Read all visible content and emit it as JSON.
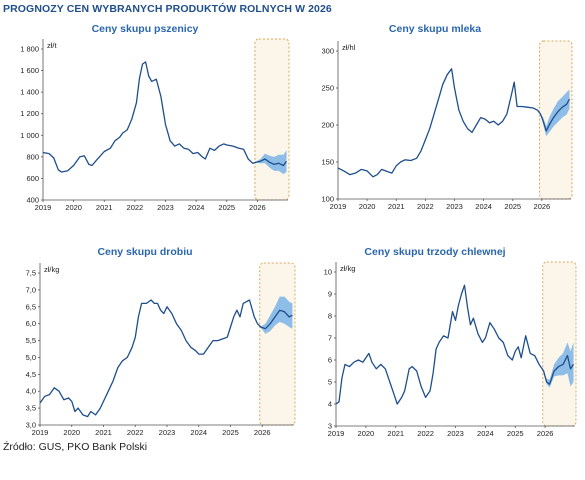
{
  "header": {
    "title": "PROGNOZY CEN WYBRANYCH PRODUKTÓW ROLNYCH W 2026"
  },
  "footer": {
    "source": "Źródło: GUS, PKO Bank Polski"
  },
  "colors": {
    "line": "#1f4e8c",
    "band": "#6aaae6",
    "forecast_box_fill": "#fbf5ea",
    "forecast_box_border": "#d9a85a",
    "axis": "#555555"
  },
  "chart_data": [
    {
      "type": "line",
      "title": "Ceny skupu pszenicy",
      "unit": "zł/t",
      "ylim": [
        400,
        1800
      ],
      "yticks": [
        400,
        600,
        800,
        1000,
        1200,
        1400,
        1600,
        1800
      ],
      "ytick_labels": [
        "400",
        "600",
        "800",
        "1 000",
        "1 200",
        "1 400",
        "1 600",
        "1 800"
      ],
      "xlim": [
        2019,
        2027
      ],
      "xticks": [
        2019,
        2020,
        2021,
        2022,
        2023,
        2024,
        2025,
        2026
      ],
      "forecast_start": 2025.92,
      "x": [
        2019.0,
        2019.2,
        2019.35,
        2019.5,
        2019.6,
        2019.8,
        2020.0,
        2020.2,
        2020.35,
        2020.5,
        2020.6,
        2020.75,
        2021.0,
        2021.2,
        2021.35,
        2021.5,
        2021.6,
        2021.75,
        2021.9,
        2022.05,
        2022.15,
        2022.25,
        2022.35,
        2022.45,
        2022.55,
        2022.7,
        2022.85,
        2023.0,
        2023.15,
        2023.3,
        2023.45,
        2023.6,
        2023.75,
        2023.9,
        2024.05,
        2024.2,
        2024.3,
        2024.45,
        2024.6,
        2024.75,
        2024.9,
        2025.0,
        2025.2,
        2025.4,
        2025.55,
        2025.7,
        2025.85,
        2025.95,
        2026.1,
        2026.25,
        2026.4,
        2026.55,
        2026.7,
        2026.85,
        2026.95
      ],
      "values": [
        840,
        830,
        790,
        680,
        660,
        670,
        720,
        800,
        810,
        730,
        720,
        770,
        850,
        880,
        950,
        980,
        1020,
        1050,
        1150,
        1300,
        1530,
        1660,
        1680,
        1550,
        1500,
        1520,
        1360,
        1100,
        950,
        900,
        920,
        880,
        870,
        830,
        840,
        800,
        780,
        880,
        860,
        900,
        920,
        910,
        900,
        880,
        870,
        780,
        740,
        750,
        760,
        780,
        750,
        730,
        740,
        720,
        760
      ],
      "band_x": [
        2025.95,
        2026.1,
        2026.25,
        2026.4,
        2026.55,
        2026.7,
        2026.85,
        2026.95
      ],
      "band_low": [
        745,
        740,
        740,
        700,
        670,
        670,
        640,
        660
      ],
      "band_high": [
        755,
        780,
        830,
        810,
        800,
        820,
        820,
        860
      ]
    },
    {
      "type": "line",
      "title": "Ceny skupu mleka",
      "unit": "zł/hl",
      "ylim": [
        100,
        300
      ],
      "yticks": [
        100,
        150,
        200,
        250,
        300
      ],
      "ytick_labels": [
        "100",
        "150",
        "200",
        "250",
        "300"
      ],
      "xlim": [
        2019,
        2027
      ],
      "xticks": [
        2019,
        2020,
        2021,
        2022,
        2023,
        2024,
        2025,
        2026
      ],
      "forecast_start": 2025.92,
      "x": [
        2019.0,
        2019.2,
        2019.4,
        2019.6,
        2019.8,
        2020.0,
        2020.2,
        2020.35,
        2020.5,
        2020.7,
        2020.85,
        2021.0,
        2021.15,
        2021.3,
        2021.5,
        2021.7,
        2021.85,
        2022.0,
        2022.15,
        2022.3,
        2022.45,
        2022.6,
        2022.75,
        2022.9,
        2023.0,
        2023.15,
        2023.3,
        2023.45,
        2023.6,
        2023.75,
        2023.9,
        2024.05,
        2024.2,
        2024.35,
        2024.5,
        2024.65,
        2024.8,
        2024.95,
        2025.05,
        2025.15,
        2025.3,
        2025.5,
        2025.7,
        2025.85,
        2025.95,
        2026.05,
        2026.15,
        2026.25,
        2026.4,
        2026.55,
        2026.7,
        2026.85,
        2026.95
      ],
      "values": [
        142,
        138,
        133,
        135,
        140,
        138,
        130,
        133,
        140,
        137,
        135,
        145,
        150,
        153,
        152,
        155,
        165,
        180,
        195,
        215,
        235,
        255,
        268,
        276,
        250,
        220,
        205,
        195,
        190,
        200,
        210,
        208,
        203,
        205,
        200,
        205,
        215,
        240,
        258,
        225,
        225,
        224,
        223,
        220,
        215,
        205,
        192,
        200,
        210,
        218,
        224,
        228,
        235
      ],
      "band_x": [
        2025.95,
        2026.05,
        2026.15,
        2026.25,
        2026.4,
        2026.55,
        2026.7,
        2026.85,
        2026.95
      ],
      "band_low": [
        214,
        200,
        185,
        190,
        198,
        204,
        210,
        214,
        222
      ],
      "band_high": [
        216,
        210,
        198,
        210,
        222,
        232,
        238,
        244,
        248
      ]
    },
    {
      "type": "line",
      "title": "Ceny skupu drobiu",
      "unit": "zł/kg",
      "ylim": [
        3.0,
        7.5
      ],
      "yticks": [
        3.0,
        3.5,
        4.0,
        4.5,
        5.0,
        5.5,
        6.0,
        6.5,
        7.0,
        7.5
      ],
      "ytick_labels": [
        "3,0",
        "3,5",
        "4,0",
        "4,5",
        "5,0",
        "5,5",
        "6,0",
        "6,5",
        "7,0",
        "7,5"
      ],
      "xlim": [
        2019,
        2027
      ],
      "xticks": [
        2019,
        2020,
        2021,
        2022,
        2023,
        2024,
        2025,
        2026
      ],
      "forecast_start": 2025.92,
      "x": [
        2019.0,
        2019.15,
        2019.3,
        2019.45,
        2019.6,
        2019.75,
        2019.9,
        2020.0,
        2020.1,
        2020.2,
        2020.35,
        2020.5,
        2020.6,
        2020.75,
        2020.9,
        2021.0,
        2021.15,
        2021.3,
        2021.45,
        2021.6,
        2021.75,
        2021.9,
        2022.0,
        2022.1,
        2022.2,
        2022.35,
        2022.5,
        2022.6,
        2022.7,
        2022.8,
        2022.9,
        2023.0,
        2023.15,
        2023.3,
        2023.45,
        2023.6,
        2023.75,
        2023.9,
        2024.0,
        2024.15,
        2024.3,
        2024.45,
        2024.6,
        2024.75,
        2024.9,
        2025.0,
        2025.1,
        2025.2,
        2025.3,
        2025.4,
        2025.5,
        2025.6,
        2025.75,
        2025.85,
        2025.95,
        2026.1,
        2026.25,
        2026.4,
        2026.55,
        2026.7,
        2026.85,
        2026.95
      ],
      "values": [
        3.65,
        3.85,
        3.9,
        4.1,
        4.0,
        3.75,
        3.8,
        3.7,
        3.4,
        3.5,
        3.3,
        3.25,
        3.4,
        3.3,
        3.5,
        3.7,
        4.0,
        4.3,
        4.7,
        4.9,
        5.0,
        5.3,
        5.6,
        6.2,
        6.6,
        6.6,
        6.7,
        6.6,
        6.6,
        6.4,
        6.3,
        6.5,
        6.3,
        6.0,
        5.8,
        5.5,
        5.3,
        5.2,
        5.1,
        5.1,
        5.3,
        5.5,
        5.5,
        5.55,
        5.6,
        5.9,
        6.2,
        6.4,
        6.2,
        6.6,
        6.65,
        6.7,
        6.2,
        6.0,
        5.9,
        5.85,
        6.0,
        6.2,
        6.4,
        6.35,
        6.2,
        6.25
      ],
      "band_x": [
        2025.95,
        2026.1,
        2026.25,
        2026.4,
        2026.55,
        2026.7,
        2026.85,
        2026.95
      ],
      "band_low": [
        5.88,
        5.7,
        5.78,
        5.95,
        6.05,
        6.0,
        5.9,
        5.85
      ],
      "band_high": [
        5.92,
        6.0,
        6.25,
        6.5,
        6.8,
        6.8,
        6.65,
        6.6
      ]
    },
    {
      "type": "line",
      "title": "Ceny skupu trzody chlewnej",
      "unit": "zł/kg",
      "ylim": [
        3,
        10
      ],
      "yticks": [
        3,
        4,
        5,
        6,
        7,
        8,
        9,
        10
      ],
      "ytick_labels": [
        "3",
        "4",
        "5",
        "6",
        "7",
        "8",
        "9",
        "10"
      ],
      "xlim": [
        2019,
        2027
      ],
      "xticks": [
        2019,
        2020,
        2021,
        2022,
        2023,
        2024,
        2025,
        2026
      ],
      "forecast_start": 2025.92,
      "x": [
        2019.0,
        2019.1,
        2019.2,
        2019.3,
        2019.45,
        2019.6,
        2019.75,
        2019.9,
        2020.0,
        2020.1,
        2020.2,
        2020.35,
        2020.5,
        2020.65,
        2020.8,
        2020.95,
        2021.05,
        2021.2,
        2021.3,
        2021.45,
        2021.55,
        2021.7,
        2021.85,
        2022.0,
        2022.15,
        2022.25,
        2022.35,
        2022.45,
        2022.6,
        2022.75,
        2022.9,
        2023.0,
        2023.1,
        2023.2,
        2023.3,
        2023.4,
        2023.5,
        2023.6,
        2023.75,
        2023.9,
        2024.0,
        2024.15,
        2024.3,
        2024.45,
        2024.6,
        2024.75,
        2024.9,
        2025.0,
        2025.1,
        2025.2,
        2025.35,
        2025.5,
        2025.65,
        2025.8,
        2025.95,
        2026.05,
        2026.15,
        2026.3,
        2026.45,
        2026.6,
        2026.75,
        2026.85,
        2026.95
      ],
      "values": [
        4.0,
        4.1,
        5.2,
        5.8,
        5.7,
        5.9,
        6.0,
        5.9,
        6.1,
        6.3,
        5.9,
        5.6,
        5.8,
        5.6,
        5.0,
        4.4,
        4.0,
        4.3,
        4.6,
        5.6,
        5.7,
        5.5,
        4.8,
        4.3,
        4.6,
        5.4,
        6.5,
        6.8,
        7.1,
        7.0,
        8.2,
        7.8,
        8.5,
        9.0,
        9.4,
        8.4,
        7.6,
        7.9,
        7.2,
        6.8,
        7.0,
        7.7,
        7.4,
        7.0,
        6.8,
        6.2,
        6.0,
        6.4,
        6.6,
        6.1,
        7.1,
        6.3,
        6.2,
        5.8,
        5.5,
        5.0,
        4.9,
        5.5,
        5.7,
        5.8,
        6.2,
        5.6,
        5.8
      ],
      "band_x": [
        2025.95,
        2026.05,
        2026.15,
        2026.3,
        2026.45,
        2026.6,
        2026.75,
        2026.85,
        2026.95
      ],
      "band_low": [
        5.48,
        4.9,
        4.75,
        5.25,
        5.3,
        5.3,
        5.4,
        4.8,
        5.0
      ],
      "band_high": [
        5.52,
        5.15,
        5.1,
        5.8,
        6.1,
        6.3,
        6.8,
        6.4,
        6.8
      ]
    }
  ]
}
